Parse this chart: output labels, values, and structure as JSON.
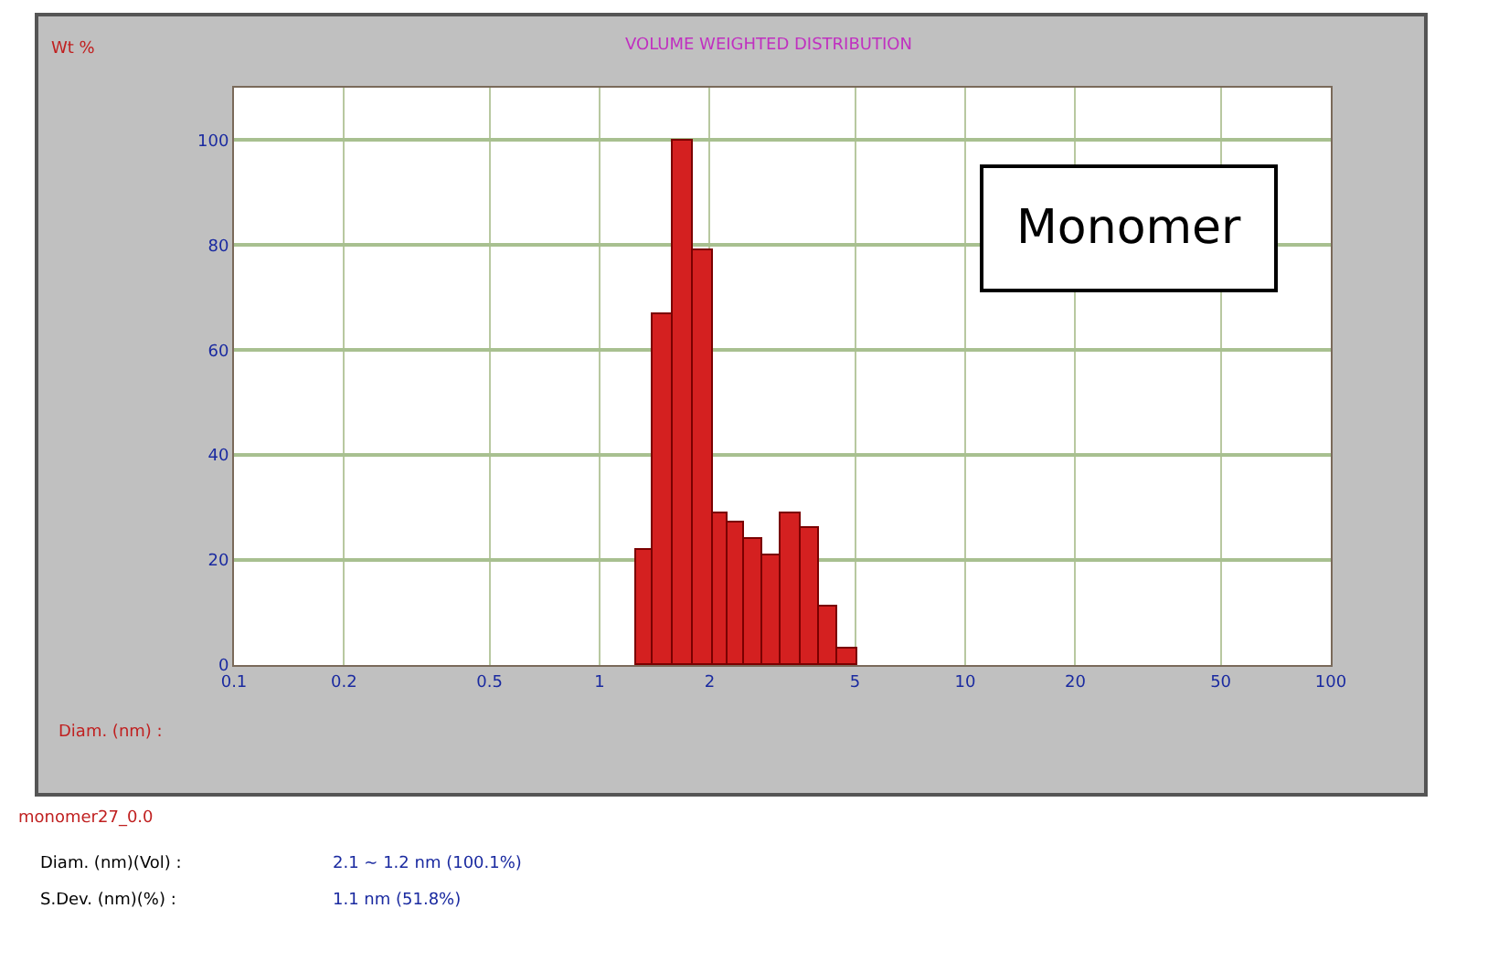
{
  "chart_data": {
    "type": "histogram",
    "title": "VOLUME WEIGHTED DISTRIBUTION",
    "xlabel": "Diam. (nm) :",
    "bins": [
      1.26,
      1.4,
      1.59,
      1.8,
      2.03,
      2.23,
      2.49,
      2.8,
      3.14,
      3.56,
      3.99,
      4.48,
      5.08
    ],
    "values": [
      22,
      67,
      100,
      79,
      29,
      27,
      24,
      21,
      29,
      26,
      11,
      3
    ],
    "color": "#d42020",
    "log": "x",
    "xlim": [
      0.1,
      100
    ],
    "xticks": [
      0.1,
      0.2,
      0.5,
      1,
      2,
      5,
      10,
      20,
      50,
      100
    ],
    "ylim": [
      0,
      110
    ],
    "yticks": [
      0,
      20,
      40,
      60,
      80,
      100
    ],
    "grid": true,
    "annotations": [
      "Wt %",
      "Monomer",
      "monomer27_0.0",
      "Diam. (nm)(Vol) :",
      "2.1 ~ 1.2 nm (100.1%)",
      "S.Dev. (nm)(%) :",
      "1.1 nm (51.8%)"
    ]
  }
}
